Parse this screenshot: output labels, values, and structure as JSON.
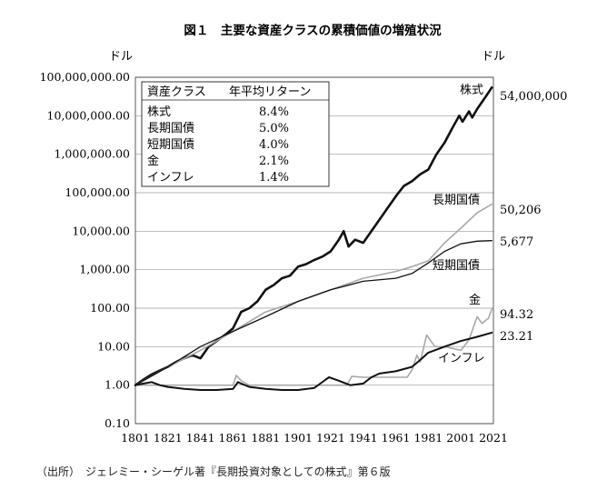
{
  "chart_data": {
    "type": "line",
    "title": "図１　主要な資産クラスの累積価値の増殖状況",
    "y_unit_left": "ドル",
    "y_unit_right": "ドル",
    "y_scale": "log",
    "ylim": [
      0.1,
      100000000
    ],
    "xlim": [
      1801,
      2021
    ],
    "x_ticks": [
      "1801",
      "1821",
      "1841",
      "1861",
      "1881",
      "1901",
      "1921",
      "1941",
      "1961",
      "1981",
      "2001",
      "2021"
    ],
    "y_ticks": [
      "0.10",
      "1.00",
      "10.00",
      "100.00",
      "1,000.00",
      "10,000.00",
      "100,000.00",
      "1,000,000.00",
      "10,000,000.00",
      "100,000,000.00"
    ],
    "grid": "horizontal",
    "legend_table": {
      "position": "top-left",
      "header": [
        "資産クラス",
        "年平均リターン"
      ],
      "rows": [
        [
          "株式",
          "8.4%"
        ],
        [
          "長期国債",
          "5.0%"
        ],
        [
          "短期国債",
          "4.0%"
        ],
        [
          "金",
          "2.1%"
        ],
        [
          "インフレ",
          "1.4%"
        ]
      ]
    },
    "series": [
      {
        "name": "株式",
        "end_label": "54,000,000",
        "color": "#111111",
        "x": [
          1801,
          1806,
          1811,
          1816,
          1821,
          1826,
          1831,
          1836,
          1841,
          1846,
          1851,
          1856,
          1861,
          1866,
          1871,
          1876,
          1881,
          1886,
          1891,
          1896,
          1901,
          1906,
          1911,
          1916,
          1921,
          1926,
          1929,
          1932,
          1936,
          1941,
          1946,
          1951,
          1956,
          1961,
          1966,
          1971,
          1976,
          1981,
          1986,
          1991,
          1996,
          2000,
          2002,
          2006,
          2008,
          2011,
          2016,
          2020
        ],
        "values": [
          1,
          1.4,
          1.9,
          2.4,
          3,
          4,
          5,
          6,
          5,
          10,
          14,
          20,
          30,
          80,
          100,
          150,
          300,
          400,
          600,
          700,
          1200,
          1400,
          1800,
          2200,
          3000,
          6000,
          10000,
          4000,
          6000,
          5000,
          10000,
          20000,
          40000,
          80000,
          150000,
          200000,
          300000,
          400000,
          1000000,
          2000000,
          5000000,
          10000000,
          7000000,
          13000000,
          9000000,
          15000000,
          30000000,
          54000000
        ]
      },
      {
        "name": "長期国債",
        "end_label": "50,206",
        "color": "#a8a8a8",
        "x": [
          1801,
          1821,
          1841,
          1861,
          1881,
          1901,
          1921,
          1941,
          1961,
          1971,
          1981,
          1991,
          2001,
          2011,
          2020
        ],
        "values": [
          1,
          3,
          8,
          25,
          80,
          150,
          300,
          600,
          900,
          1200,
          1700,
          5000,
          12000,
          30000,
          50206
        ]
      },
      {
        "name": "短期国債",
        "end_label": "5,677",
        "color": "#111111",
        "x": [
          1801,
          1821,
          1841,
          1861,
          1881,
          1901,
          1921,
          1941,
          1961,
          1971,
          1981,
          1991,
          2001,
          2011,
          2020
        ],
        "values": [
          1,
          3,
          10,
          25,
          60,
          150,
          300,
          500,
          600,
          800,
          1500,
          3000,
          4700,
          5500,
          5677
        ]
      },
      {
        "name": "金",
        "end_label": "94.32",
        "color": "#a8a8a8",
        "x": [
          1801,
          1811,
          1821,
          1831,
          1841,
          1851,
          1861,
          1863,
          1866,
          1871,
          1881,
          1891,
          1901,
          1911,
          1921,
          1931,
          1934,
          1941,
          1951,
          1961,
          1968,
          1971,
          1974,
          1976,
          1980,
          1985,
          1991,
          2001,
          2006,
          2011,
          2014,
          2018,
          2020
        ],
        "values": [
          1,
          1,
          1,
          1,
          1,
          1,
          1,
          1.8,
          1.3,
          1,
          1,
          1,
          1,
          1,
          1,
          1,
          1.7,
          1.6,
          1.6,
          1.6,
          1.6,
          2.5,
          6,
          4,
          20,
          10,
          10,
          8,
          15,
          60,
          40,
          55,
          94.32
        ]
      },
      {
        "name": "インフレ",
        "end_label": "23.21",
        "color": "#111111",
        "x": [
          1801,
          1806,
          1811,
          1816,
          1821,
          1831,
          1841,
          1851,
          1861,
          1864,
          1866,
          1871,
          1881,
          1891,
          1901,
          1911,
          1918,
          1920,
          1926,
          1933,
          1941,
          1946,
          1951,
          1961,
          1971,
          1976,
          1981,
          1991,
          2001,
          2011,
          2020
        ],
        "values": [
          1,
          1.1,
          1.2,
          1,
          0.9,
          0.8,
          0.75,
          0.75,
          0.8,
          1.2,
          1.1,
          0.9,
          0.8,
          0.75,
          0.75,
          0.85,
          1.4,
          1.6,
          1.3,
          1.0,
          1.1,
          1.6,
          2,
          2.3,
          3,
          4.5,
          7,
          10,
          14,
          18,
          23.21
        ]
      }
    ],
    "annotations": [
      "株式",
      "長期国債",
      "短期国債",
      "金",
      "インフレ"
    ]
  },
  "source_note": "（出所）　ジェレミー・シーゲル著『長期投資対象としての株式』第６版"
}
